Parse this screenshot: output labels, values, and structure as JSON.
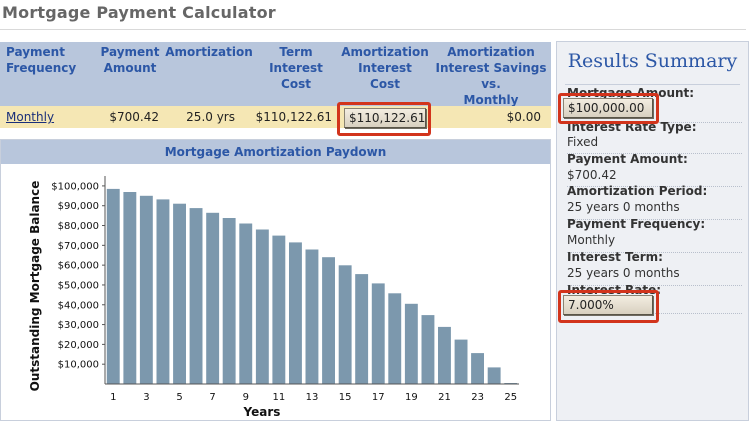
{
  "page": {
    "title": "Mortgage Payment Calculator"
  },
  "summary_table": {
    "headers": [
      "Payment\nFrequency",
      "Payment\nAmount",
      "Amortization",
      "Term\nInterest\nCost",
      "Amortization\nInterest\nCost",
      "Amortization\nInterest Savings\nvs.\nMonthly Payment"
    ],
    "row": {
      "frequency": "Monthly",
      "payment_amount": "$700.42",
      "amortization": "25.0 yrs",
      "term_interest_cost": "$110,122.61",
      "amortization_interest_cost": "$110,122.61",
      "interest_savings": "$0.00"
    }
  },
  "chart_panel": {
    "header": "Mortgage Amortization Paydown"
  },
  "chart_data": {
    "type": "bar",
    "title": "",
    "xlabel": "Years",
    "ylabel": "Outstanding Mortgage Balance",
    "ylim": [
      0,
      105000
    ],
    "yticks": [
      10000,
      20000,
      30000,
      40000,
      50000,
      60000,
      70000,
      80000,
      90000,
      100000
    ],
    "ytick_labels": [
      "$10,000",
      "$20,000",
      "$30,000",
      "$40,000",
      "$50,000",
      "$60,000",
      "$70,000",
      "$80,000",
      "$90,000",
      "$100,000"
    ],
    "categories": [
      "1",
      "2",
      "3",
      "4",
      "5",
      "6",
      "7",
      "8",
      "9",
      "10",
      "11",
      "12",
      "13",
      "14",
      "15",
      "16",
      "17",
      "18",
      "19",
      "20",
      "21",
      "22",
      "23",
      "24",
      "25"
    ],
    "xtick_labels": [
      "1",
      "3",
      "5",
      "7",
      "9",
      "11",
      "13",
      "15",
      "17",
      "19",
      "21",
      "23",
      "25"
    ],
    "values": [
      98500,
      96900,
      95000,
      93200,
      91000,
      88800,
      86400,
      83800,
      81000,
      78000,
      74900,
      71500,
      67900,
      64000,
      59900,
      55500,
      50800,
      45800,
      40500,
      34800,
      28800,
      22400,
      15600,
      8400,
      500
    ],
    "bar_color": "#7c98ad",
    "grid": false
  },
  "results": {
    "title": "Results Summary",
    "items": [
      {
        "label": "Mortgage Amount:",
        "value": "$100,000.00",
        "highlighted": true
      },
      {
        "label": "Interest Rate Type:",
        "value": "Fixed",
        "highlighted": false
      },
      {
        "label": "Payment Amount:",
        "value": "$700.42",
        "highlighted": false
      },
      {
        "label": "Amortization Period:",
        "value": "25 years 0 months",
        "highlighted": false
      },
      {
        "label": "Payment Frequency:",
        "value": "Monthly",
        "highlighted": false
      },
      {
        "label": "Interest Term:",
        "value": "25 years 0 months",
        "highlighted": false
      },
      {
        "label": "Interest Rate:",
        "value": "7.000%",
        "highlighted": true
      }
    ]
  },
  "colors": {
    "header_bg": "#b8c6dc",
    "header_text": "#2c57a6",
    "row_bg": "#f5e7b4",
    "highlight_border": "#d2341c",
    "bar": "#7c98ad"
  }
}
